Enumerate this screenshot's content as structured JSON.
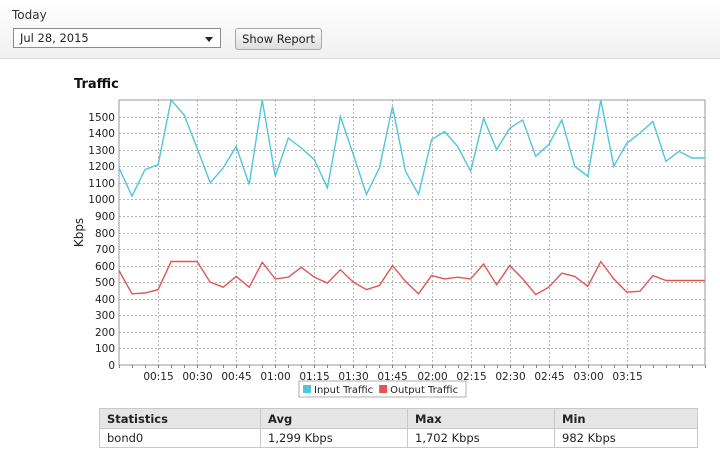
{
  "toolbar": {
    "period_label": "Today",
    "date_value": "Jul 28, 2015",
    "show_report_label": "Show Report"
  },
  "chart_title": "Traffic",
  "chart_data": {
    "type": "line",
    "title": "Traffic",
    "xlabel": "",
    "ylabel": "Kbps",
    "ylim": [
      0,
      1600
    ],
    "yticks": [
      0,
      100,
      200,
      300,
      400,
      500,
      600,
      700,
      800,
      900,
      1000,
      1100,
      1200,
      1300,
      1400,
      1500
    ],
    "xlim": [
      0,
      225
    ],
    "x_tick_labels": [
      "00:15",
      "00:30",
      "00:45",
      "01:00",
      "01:15",
      "01:30",
      "01:45",
      "02:00",
      "02:15",
      "02:30",
      "02:45",
      "03:00",
      "03:15"
    ],
    "grid": true,
    "legend_position": "bottom",
    "series": [
      {
        "name": "Input Traffic",
        "color": "#4fc6dc",
        "x": [
          0,
          5,
          10,
          15,
          20,
          25,
          30,
          35,
          40,
          45,
          50,
          55,
          60,
          65,
          70,
          75,
          80,
          85,
          90,
          95,
          100,
          105,
          110,
          115,
          120,
          125,
          130,
          135,
          140,
          145,
          150,
          155,
          160,
          165,
          170,
          175,
          180,
          185,
          190,
          195,
          200,
          205,
          210,
          215,
          220,
          225
        ],
        "values": [
          1190,
          1020,
          1180,
          1210,
          1600,
          1510,
          1310,
          1100,
          1190,
          1320,
          1090,
          1600,
          1140,
          1370,
          1310,
          1240,
          1070,
          1500,
          1270,
          1030,
          1190,
          1560,
          1170,
          1030,
          1360,
          1410,
          1320,
          1170,
          1490,
          1300,
          1430,
          1480,
          1260,
          1330,
          1480,
          1200,
          1140,
          1600,
          1200,
          1340,
          1400,
          1470,
          1230,
          1290,
          1250,
          1250
        ]
      },
      {
        "name": "Output Traffic",
        "color": "#e45454",
        "x": [
          0,
          5,
          10,
          15,
          20,
          25,
          30,
          35,
          40,
          45,
          50,
          55,
          60,
          65,
          70,
          75,
          80,
          85,
          90,
          95,
          100,
          105,
          110,
          115,
          120,
          125,
          130,
          135,
          140,
          145,
          150,
          155,
          160,
          165,
          170,
          175,
          180,
          185,
          190,
          195,
          200,
          205,
          210,
          215,
          220,
          225
        ],
        "values": [
          570,
          430,
          435,
          455,
          625,
          625,
          625,
          500,
          470,
          535,
          470,
          620,
          520,
          530,
          590,
          530,
          495,
          575,
          500,
          455,
          480,
          600,
          505,
          430,
          540,
          520,
          530,
          520,
          610,
          485,
          600,
          520,
          425,
          470,
          555,
          535,
          475,
          625,
          520,
          440,
          445,
          540,
          510,
          510,
          510,
          510
        ]
      }
    ]
  },
  "stats": {
    "headers": [
      "Statistics",
      "Avg",
      "Max",
      "Min"
    ],
    "rows": [
      [
        "bond0",
        "1,299 Kbps",
        "1,702 Kbps",
        "982 Kbps"
      ]
    ]
  }
}
